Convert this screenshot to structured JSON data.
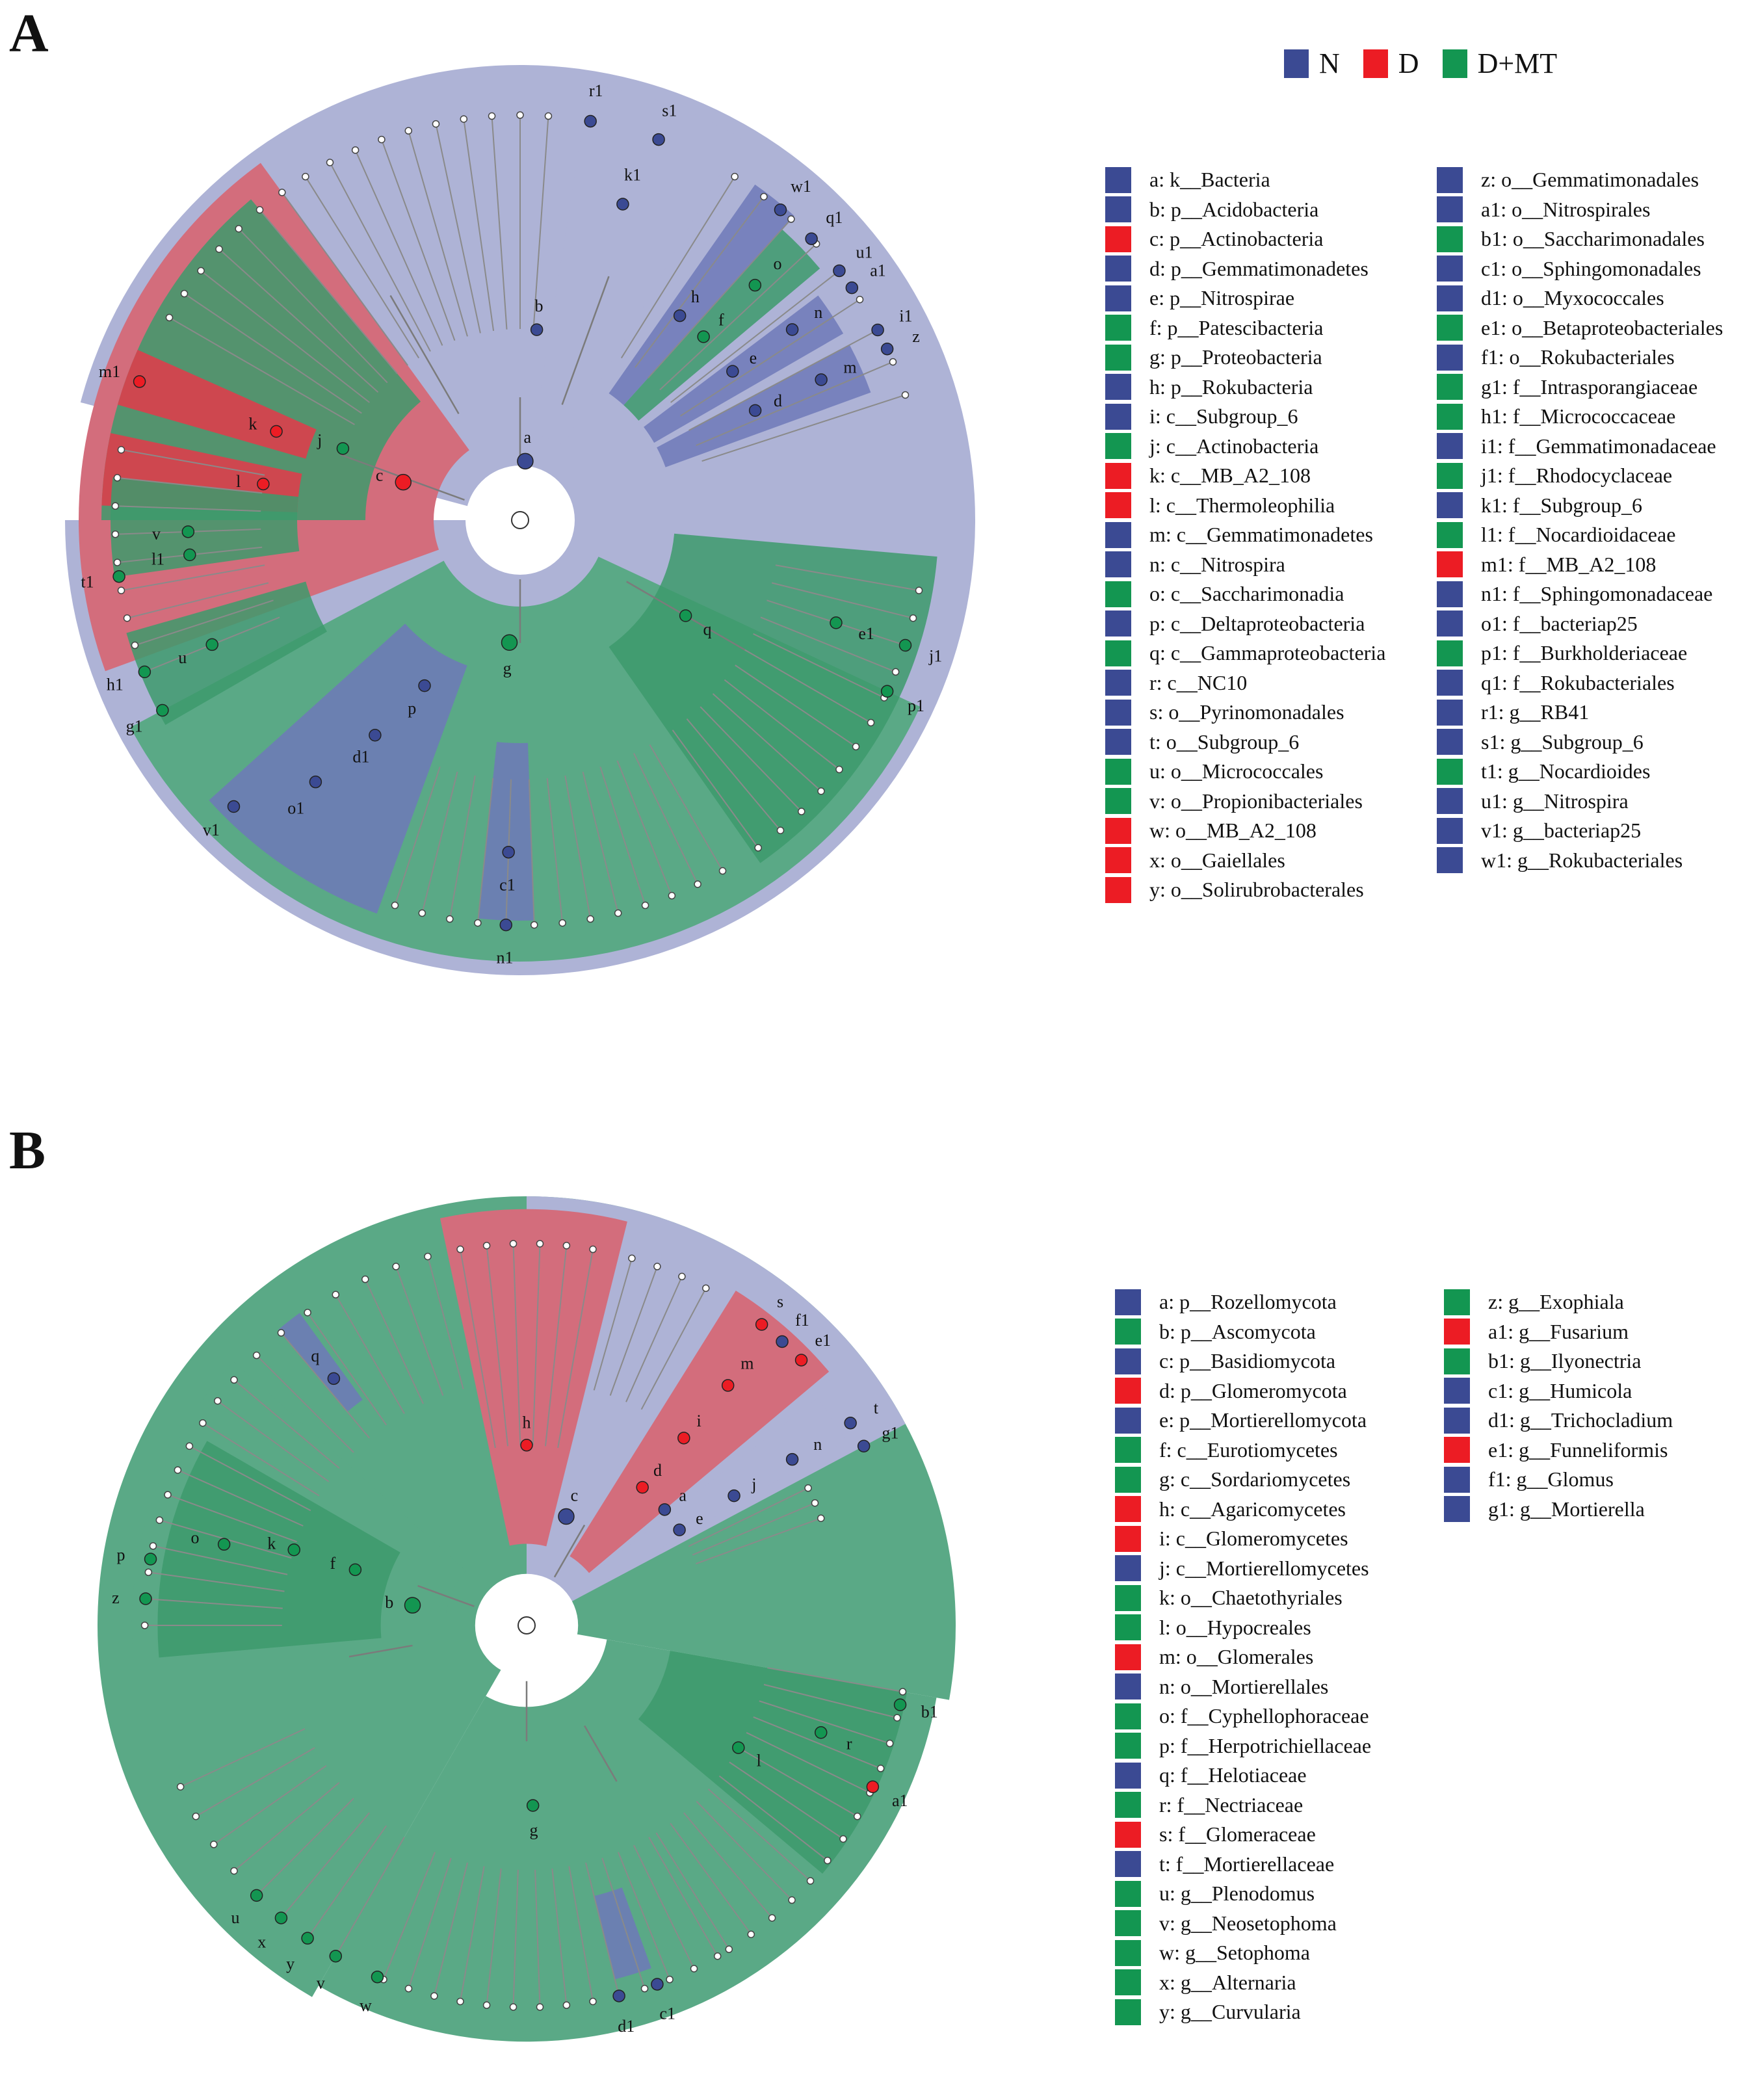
{
  "panels": {
    "A": {
      "letter": "A",
      "groups": [
        {
          "name": "N",
          "color": "#3b4a93"
        },
        {
          "name": "D",
          "color": "#ec1c24"
        },
        {
          "name": "D+MT",
          "color": "#139651"
        }
      ],
      "taxa": [
        {
          "code": "a",
          "rank": "k",
          "name": "Bacteria",
          "group": "N"
        },
        {
          "code": "b",
          "rank": "p",
          "name": "Acidobacteria",
          "group": "N"
        },
        {
          "code": "c",
          "rank": "p",
          "name": "Actinobacteria",
          "group": "D"
        },
        {
          "code": "d",
          "rank": "p",
          "name": "Gemmatimonadetes",
          "group": "N"
        },
        {
          "code": "e",
          "rank": "p",
          "name": "Nitrospirae",
          "group": "N"
        },
        {
          "code": "f",
          "rank": "p",
          "name": "Patescibacteria",
          "group": "D+MT"
        },
        {
          "code": "g",
          "rank": "p",
          "name": "Proteobacteria",
          "group": "D+MT"
        },
        {
          "code": "h",
          "rank": "p",
          "name": "Rokubacteria",
          "group": "N"
        },
        {
          "code": "i",
          "rank": "c",
          "name": "Subgroup_6",
          "group": "N"
        },
        {
          "code": "j",
          "rank": "c",
          "name": "Actinobacteria",
          "group": "D+MT"
        },
        {
          "code": "k",
          "rank": "c",
          "name": "MB_A2_108",
          "group": "D"
        },
        {
          "code": "l",
          "rank": "c",
          "name": "Thermoleophilia",
          "group": "D"
        },
        {
          "code": "m",
          "rank": "c",
          "name": "Gemmatimonadetes",
          "group": "N"
        },
        {
          "code": "n",
          "rank": "c",
          "name": "Nitrospira",
          "group": "N"
        },
        {
          "code": "o",
          "rank": "c",
          "name": "Saccharimonadia",
          "group": "D+MT"
        },
        {
          "code": "p",
          "rank": "c",
          "name": "Deltaproteobacteria",
          "group": "N"
        },
        {
          "code": "q",
          "rank": "c",
          "name": "Gammaproteobacteria",
          "group": "D+MT"
        },
        {
          "code": "r",
          "rank": "c",
          "name": "NC10",
          "group": "N"
        },
        {
          "code": "s",
          "rank": "o",
          "name": "Pyrinomonadales",
          "group": "N"
        },
        {
          "code": "t",
          "rank": "o",
          "name": "Subgroup_6",
          "group": "N"
        },
        {
          "code": "u",
          "rank": "o",
          "name": "Micrococcales",
          "group": "D+MT"
        },
        {
          "code": "v",
          "rank": "o",
          "name": "Propionibacteriales",
          "group": "D+MT"
        },
        {
          "code": "w",
          "rank": "o",
          "name": "MB_A2_108",
          "group": "D"
        },
        {
          "code": "x",
          "rank": "o",
          "name": "Gaiellales",
          "group": "D"
        },
        {
          "code": "y",
          "rank": "o",
          "name": "Solirubrobacterales",
          "group": "D"
        },
        {
          "code": "z",
          "rank": "o",
          "name": "Gemmatimonadales",
          "group": "N"
        },
        {
          "code": "a1",
          "rank": "o",
          "name": "Nitrospirales",
          "group": "N"
        },
        {
          "code": "b1",
          "rank": "o",
          "name": "Saccharimonadales",
          "group": "D+MT"
        },
        {
          "code": "c1",
          "rank": "o",
          "name": "Sphingomonadales",
          "group": "N"
        },
        {
          "code": "d1",
          "rank": "o",
          "name": "Myxococcales",
          "group": "N"
        },
        {
          "code": "e1",
          "rank": "o",
          "name": "Betaproteobacteriales",
          "group": "D+MT"
        },
        {
          "code": "f1",
          "rank": "o",
          "name": "Rokubacteriales",
          "group": "N"
        },
        {
          "code": "g1",
          "rank": "f",
          "name": "Intrasporangiaceae",
          "group": "D+MT"
        },
        {
          "code": "h1",
          "rank": "f",
          "name": "Micrococcaceae",
          "group": "D+MT"
        },
        {
          "code": "i1",
          "rank": "f",
          "name": "Gemmatimonadaceae",
          "group": "N"
        },
        {
          "code": "j1",
          "rank": "f",
          "name": "Rhodocyclaceae",
          "group": "D+MT"
        },
        {
          "code": "k1",
          "rank": "f",
          "name": "Subgroup_6",
          "group": "N"
        },
        {
          "code": "l1",
          "rank": "f",
          "name": "Nocardioidaceae",
          "group": "D+MT"
        },
        {
          "code": "m1",
          "rank": "f",
          "name": "MB_A2_108",
          "group": "D"
        },
        {
          "code": "n1",
          "rank": "f",
          "name": "Sphingomonadaceae",
          "group": "N"
        },
        {
          "code": "o1",
          "rank": "f",
          "name": "bacteriap25",
          "group": "N"
        },
        {
          "code": "p1",
          "rank": "f",
          "name": "Burkholderiaceae",
          "group": "D+MT"
        },
        {
          "code": "q1",
          "rank": "f",
          "name": "Rokubacteriales",
          "group": "N"
        },
        {
          "code": "r1",
          "rank": "g",
          "name": "RB41",
          "group": "N"
        },
        {
          "code": "s1",
          "rank": "g",
          "name": "Subgroup_6",
          "group": "N"
        },
        {
          "code": "t1",
          "rank": "g",
          "name": "Nocardioides",
          "group": "D+MT"
        },
        {
          "code": "u1",
          "rank": "g",
          "name": "Nitrospira",
          "group": "N"
        },
        {
          "code": "v1",
          "rank": "g",
          "name": "bacteriap25",
          "group": "N"
        },
        {
          "code": "w1",
          "rank": "g",
          "name": "Rokubacteriales",
          "group": "N"
        }
      ]
    },
    "B": {
      "letter": "B",
      "taxa": [
        {
          "code": "a",
          "rank": "p",
          "name": "Rozellomycota",
          "group": "N"
        },
        {
          "code": "b",
          "rank": "p",
          "name": "Ascomycota",
          "group": "D+MT"
        },
        {
          "code": "c",
          "rank": "p",
          "name": "Basidiomycota",
          "group": "N"
        },
        {
          "code": "d",
          "rank": "p",
          "name": "Glomeromycota",
          "group": "D"
        },
        {
          "code": "e",
          "rank": "p",
          "name": "Mortierellomycota",
          "group": "N"
        },
        {
          "code": "f",
          "rank": "c",
          "name": "Eurotiomycetes",
          "group": "D+MT"
        },
        {
          "code": "g",
          "rank": "c",
          "name": "Sordariomycetes",
          "group": "D+MT"
        },
        {
          "code": "h",
          "rank": "c",
          "name": "Agaricomycetes",
          "group": "D"
        },
        {
          "code": "i",
          "rank": "c",
          "name": "Glomeromycetes",
          "group": "D"
        },
        {
          "code": "j",
          "rank": "c",
          "name": "Mortierellomycetes",
          "group": "N"
        },
        {
          "code": "k",
          "rank": "o",
          "name": "Chaetothyriales",
          "group": "D+MT"
        },
        {
          "code": "l",
          "rank": "o",
          "name": "Hypocreales",
          "group": "D+MT"
        },
        {
          "code": "m",
          "rank": "o",
          "name": "Glomerales",
          "group": "D"
        },
        {
          "code": "n",
          "rank": "o",
          "name": "Mortierellales",
          "group": "N"
        },
        {
          "code": "o",
          "rank": "f",
          "name": "Cyphellophoraceae",
          "group": "D+MT"
        },
        {
          "code": "p",
          "rank": "f",
          "name": "Herpotrichiellaceae",
          "group": "D+MT"
        },
        {
          "code": "q",
          "rank": "f",
          "name": "Helotiaceae",
          "group": "N"
        },
        {
          "code": "r",
          "rank": "f",
          "name": "Nectriaceae",
          "group": "D+MT"
        },
        {
          "code": "s",
          "rank": "f",
          "name": "Glomeraceae",
          "group": "D"
        },
        {
          "code": "t",
          "rank": "f",
          "name": "Mortierellaceae",
          "group": "N"
        },
        {
          "code": "u",
          "rank": "g",
          "name": "Plenodomus",
          "group": "D+MT"
        },
        {
          "code": "v",
          "rank": "g",
          "name": "Neosetophoma",
          "group": "D+MT"
        },
        {
          "code": "w",
          "rank": "g",
          "name": "Setophoma",
          "group": "D+MT"
        },
        {
          "code": "x",
          "rank": "g",
          "name": "Alternaria",
          "group": "D+MT"
        },
        {
          "code": "y",
          "rank": "g",
          "name": "Curvularia",
          "group": "D+MT"
        },
        {
          "code": "z",
          "rank": "g",
          "name": "Exophiala",
          "group": "D+MT"
        },
        {
          "code": "a1",
          "rank": "g",
          "name": "Fusarium",
          "group": "D"
        },
        {
          "code": "b1",
          "rank": "g",
          "name": "Ilyonectria",
          "group": "D+MT"
        },
        {
          "code": "c1",
          "rank": "g",
          "name": "Humicola",
          "group": "N"
        },
        {
          "code": "d1",
          "rank": "g",
          "name": "Trichocladium",
          "group": "N"
        },
        {
          "code": "e1",
          "rank": "g",
          "name": "Funneliformis",
          "group": "D"
        },
        {
          "code": "f1",
          "rank": "g",
          "name": "Glomus",
          "group": "N"
        },
        {
          "code": "g1",
          "rank": "g",
          "name": "Mortierella",
          "group": "N"
        }
      ]
    }
  }
}
